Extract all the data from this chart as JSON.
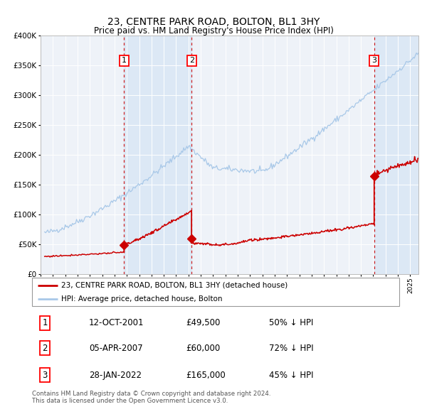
{
  "title": "23, CENTRE PARK ROAD, BOLTON, BL1 3HY",
  "subtitle": "Price paid vs. HM Land Registry's House Price Index (HPI)",
  "background_color": "#ffffff",
  "plot_bg_color": "#eef2f8",
  "grid_color": "#ffffff",
  "ylim": [
    0,
    400000
  ],
  "yticks": [
    0,
    50000,
    100000,
    150000,
    200000,
    250000,
    300000,
    350000,
    400000
  ],
  "sale_dates_num": [
    2001.78,
    2007.26,
    2022.07
  ],
  "sale_prices": [
    49500,
    60000,
    165000
  ],
  "sale_labels": [
    "1",
    "2",
    "3"
  ],
  "hpi_line_color": "#a8c8e8",
  "price_line_color": "#cc0000",
  "vline_color": "#cc0000",
  "shade_color": "#dce8f5",
  "legend_house_label": "23, CENTRE PARK ROAD, BOLTON, BL1 3HY (detached house)",
  "legend_hpi_label": "HPI: Average price, detached house, Bolton",
  "table_rows": [
    [
      "1",
      "12-OCT-2001",
      "£49,500",
      "50% ↓ HPI"
    ],
    [
      "2",
      "05-APR-2007",
      "£60,000",
      "72% ↓ HPI"
    ],
    [
      "3",
      "28-JAN-2022",
      "£165,000",
      "45% ↓ HPI"
    ]
  ],
  "footer": "Contains HM Land Registry data © Crown copyright and database right 2024.\nThis data is licensed under the Open Government Licence v3.0.",
  "xstart": 1995.33,
  "xend": 2025.67
}
